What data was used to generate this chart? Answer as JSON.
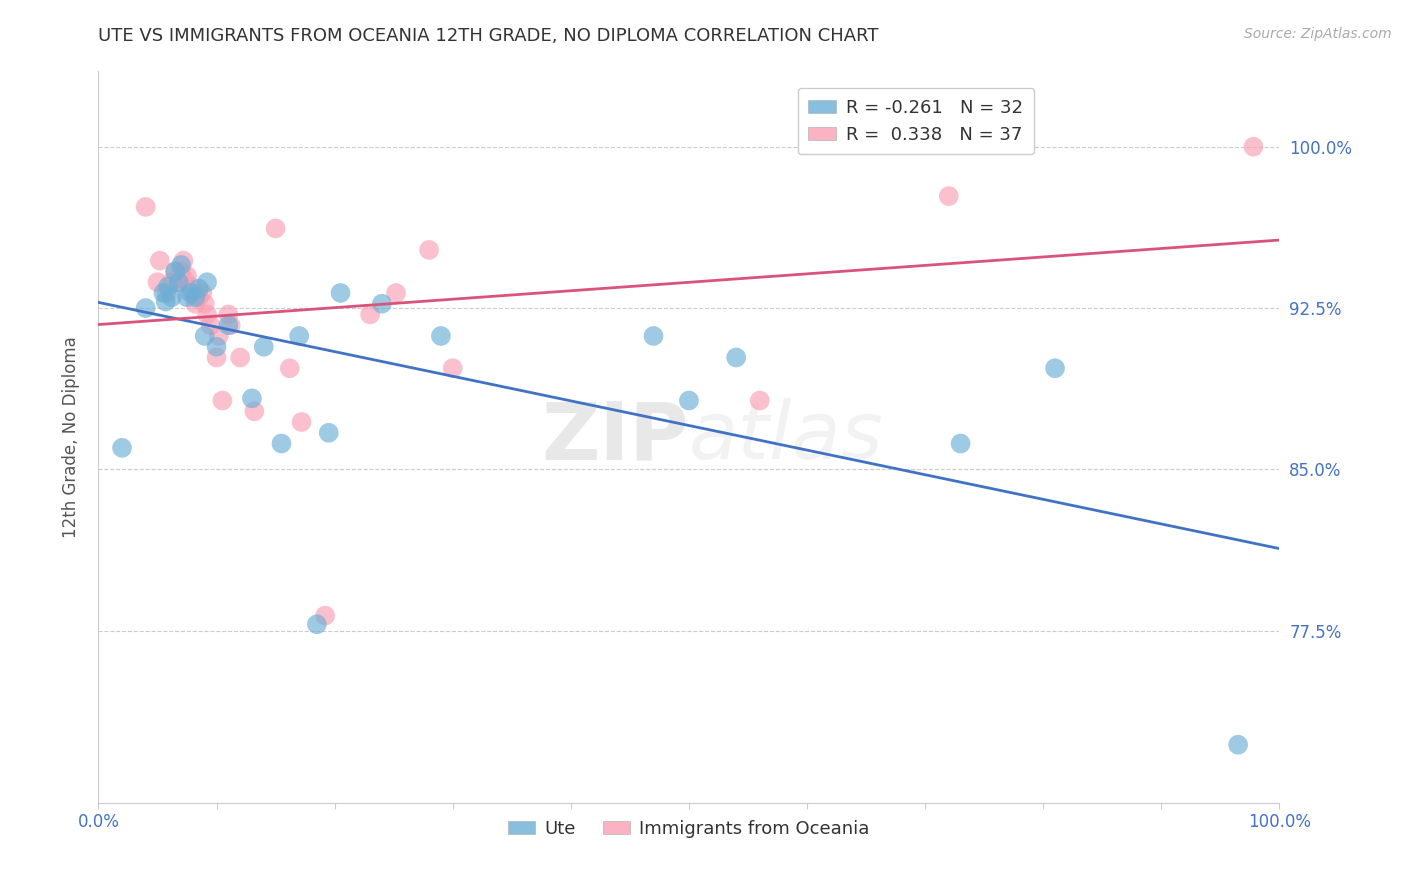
{
  "title": "UTE VS IMMIGRANTS FROM OCEANIA 12TH GRADE, NO DIPLOMA CORRELATION CHART",
  "source": "Source: ZipAtlas.com",
  "ylabel": "12th Grade, No Diploma",
  "legend_labels": [
    "Ute",
    "Immigrants from Oceania"
  ],
  "ute_R": -0.261,
  "ute_N": 32,
  "oceania_R": 0.338,
  "oceania_N": 37,
  "xlim": [
    0.0,
    1.0
  ],
  "ylim": [
    0.695,
    1.035
  ],
  "xticks": [
    0.0,
    0.1,
    0.2,
    0.3,
    0.4,
    0.5,
    0.6,
    0.7,
    0.8,
    0.9,
    1.0
  ],
  "xtick_labels_show": [
    "0.0%",
    "",
    "",
    "",
    "",
    "",
    "",
    "",
    "",
    "",
    "100.0%"
  ],
  "ytick_labels": [
    "77.5%",
    "85.0%",
    "92.5%",
    "100.0%"
  ],
  "yticks": [
    0.775,
    0.85,
    0.925,
    1.0
  ],
  "ute_color": "#6baed6",
  "oceania_color": "#fa9fb5",
  "trendline_ute_color": "#4272c4",
  "trendline_oceania_color": "#d9547a",
  "watermark_zip": "ZIP",
  "watermark_atlas": "atlas",
  "background_color": "#ffffff",
  "ute_x": [
    0.02,
    0.04,
    0.055,
    0.057,
    0.059,
    0.062,
    0.065,
    0.068,
    0.07,
    0.075,
    0.078,
    0.082,
    0.085,
    0.09,
    0.092,
    0.1,
    0.11,
    0.13,
    0.14,
    0.155,
    0.17,
    0.185,
    0.195,
    0.205,
    0.24,
    0.29,
    0.47,
    0.5,
    0.54,
    0.73,
    0.81,
    0.965
  ],
  "ute_y": [
    0.86,
    0.925,
    0.932,
    0.928,
    0.935,
    0.93,
    0.942,
    0.937,
    0.945,
    0.93,
    0.932,
    0.93,
    0.934,
    0.912,
    0.937,
    0.907,
    0.917,
    0.883,
    0.907,
    0.862,
    0.912,
    0.778,
    0.867,
    0.932,
    0.927,
    0.912,
    0.912,
    0.882,
    0.902,
    0.862,
    0.897,
    0.722
  ],
  "oceania_x": [
    0.04,
    0.05,
    0.052,
    0.058,
    0.062,
    0.065,
    0.068,
    0.07,
    0.072,
    0.073,
    0.075,
    0.078,
    0.08,
    0.082,
    0.085,
    0.088,
    0.09,
    0.092,
    0.095,
    0.1,
    0.102,
    0.105,
    0.11,
    0.112,
    0.12,
    0.132,
    0.15,
    0.162,
    0.172,
    0.192,
    0.23,
    0.252,
    0.28,
    0.3,
    0.56,
    0.72,
    0.978
  ],
  "oceania_y": [
    0.972,
    0.937,
    0.947,
    0.932,
    0.937,
    0.942,
    0.937,
    0.942,
    0.947,
    0.938,
    0.94,
    0.935,
    0.932,
    0.927,
    0.93,
    0.932,
    0.927,
    0.922,
    0.917,
    0.902,
    0.912,
    0.882,
    0.922,
    0.917,
    0.902,
    0.877,
    0.962,
    0.897,
    0.872,
    0.782,
    0.922,
    0.932,
    0.952,
    0.897,
    0.882,
    0.977,
    1.0
  ]
}
